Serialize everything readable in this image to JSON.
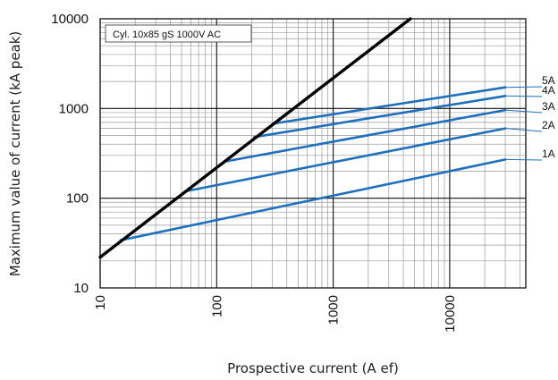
{
  "chart_data": {
    "type": "line",
    "title_box": "Cyl. 10x85 gS 1000V AC",
    "xlabel": "Prospective current (A ef)",
    "ylabel": "Maximum value of current (kA peak)",
    "x_scale": "log",
    "y_scale": "log",
    "xlim": [
      10,
      45000
    ],
    "ylim": [
      10,
      10000
    ],
    "x_ticks": [
      10,
      100,
      1000,
      10000
    ],
    "x_tick_labels": [
      "10",
      "100",
      "1000",
      "10000"
    ],
    "y_ticks": [
      10,
      100,
      1000,
      10000
    ],
    "y_tick_labels": [
      "10",
      "100",
      "1000",
      "10000"
    ],
    "grid": true,
    "reference_line": {
      "x": [
        10,
        4600
      ],
      "y": [
        22,
        10000
      ],
      "color": "#000000"
    },
    "series": [
      {
        "name": "1A",
        "x": [
          15,
          30000
        ],
        "y": [
          34,
          270
        ],
        "color": "#1f6fbf"
      },
      {
        "name": "2A",
        "x": [
          55,
          30000
        ],
        "y": [
          120,
          600
        ],
        "color": "#1f6fbf"
      },
      {
        "name": "3A",
        "x": [
          115,
          30000
        ],
        "y": [
          255,
          960
        ],
        "color": "#1f6fbf"
      },
      {
        "name": "4A",
        "x": [
          210,
          30000
        ],
        "y": [
          480,
          1380
        ],
        "color": "#1f6fbf"
      },
      {
        "name": "5A",
        "x": [
          310,
          30000
        ],
        "y": [
          680,
          1720
        ],
        "color": "#1f6fbf"
      }
    ]
  }
}
